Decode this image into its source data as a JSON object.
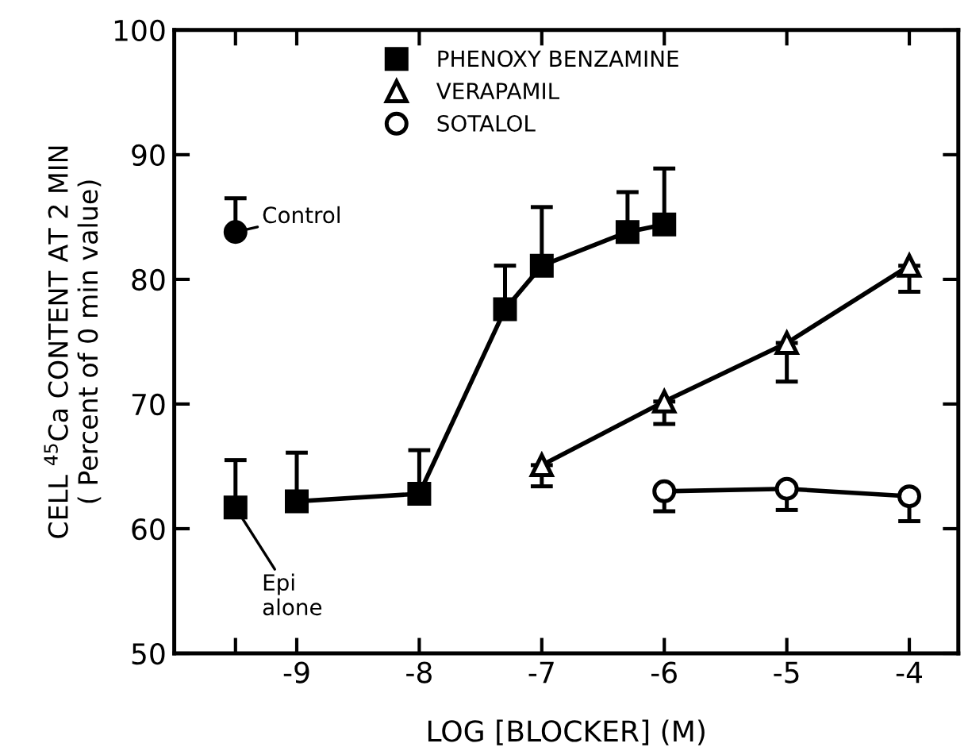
{
  "chart_data": {
    "type": "line",
    "xlabel": "LOG [BLOCKER] (M)",
    "ylabel": "CELL $^{45}$Ca CONTENT AT 2 MIN\n( Percent of 0 min value)",
    "xlim": [
      -10,
      -3.6
    ],
    "ylim": [
      50,
      100
    ],
    "xticks": [
      {
        "value": -9.5,
        "label": null
      },
      {
        "value": -9,
        "label": "-9"
      },
      {
        "value": -8,
        "label": "-8"
      },
      {
        "value": -7,
        "label": "-7"
      },
      {
        "value": -6,
        "label": "-6"
      },
      {
        "value": -5,
        "label": "-5"
      },
      {
        "value": -4,
        "label": "-4"
      }
    ],
    "yticks": [
      50,
      60,
      70,
      80,
      90,
      100
    ],
    "grid": false,
    "legend": "top",
    "series": [
      {
        "name": "PHENOXY BENZAMINE",
        "color": "#000000",
        "marker": "square",
        "colors": [
          "#000000",
          "#000000",
          "#000000",
          "#000000",
          "#000000",
          "#000000"
        ],
        "x": [
          -9,
          -8,
          -7.3,
          -7,
          -6.3,
          -6
        ],
        "values": [
          62.2,
          62.8,
          77.6,
          81.1,
          83.8,
          84.4
        ],
        "errors": [
          [
            62.2,
            66.1
          ],
          [
            62.8,
            66.3
          ],
          [
            77.6,
            81.1
          ],
          [
            81.1,
            85.8
          ],
          [
            83.8,
            87
          ],
          [
            84.4,
            88.9
          ]
        ]
      },
      {
        "name": "VERAPAMIL",
        "color": "#000000",
        "marker": "triangle",
        "colors": [
          "#ffffff",
          "#ffffff",
          "#ffffff",
          "#ffffff"
        ],
        "x": [
          -7,
          -6,
          -5,
          -4
        ],
        "values": [
          65.1,
          70.2,
          74.9,
          81.1
        ],
        "errors": [
          [
            63.4,
            65.1
          ],
          [
            68.4,
            70.2
          ],
          [
            71.8,
            74.9
          ],
          [
            79,
            81.1
          ]
        ]
      },
      {
        "name": "SOTALOL",
        "color": "#000000",
        "marker": "circle",
        "colors": [
          "#ffffff",
          "#ffffff",
          "#ffffff"
        ],
        "x": [
          -6,
          -5,
          -4
        ],
        "values": [
          63,
          63.2,
          62.6
        ],
        "errors": [
          [
            61.4,
            63
          ],
          [
            61.5,
            63.2
          ],
          [
            60.6,
            62.6
          ]
        ]
      },
      {
        "type": "scatter",
        "color": "#000000",
        "marker": "circle",
        "colors": [
          "#000000"
        ],
        "x": [
          -9.5
        ],
        "values": [
          83.8
        ],
        "errors": [
          [
            83.8,
            86.5
          ]
        ]
      },
      {
        "type": "scatter",
        "color": "#000000",
        "marker": "square",
        "colors": [
          "#000000"
        ],
        "x": [
          -9.5
        ],
        "values": [
          61.7
        ],
        "errors": [
          [
            61.7,
            65.5
          ]
        ]
      }
    ],
    "annotations": [
      {
        "text": "Control",
        "x": -9.5,
        "y": 83.8
      },
      {
        "text": "Epi\nalone",
        "x": -9.5,
        "y": 61.7
      }
    ]
  }
}
